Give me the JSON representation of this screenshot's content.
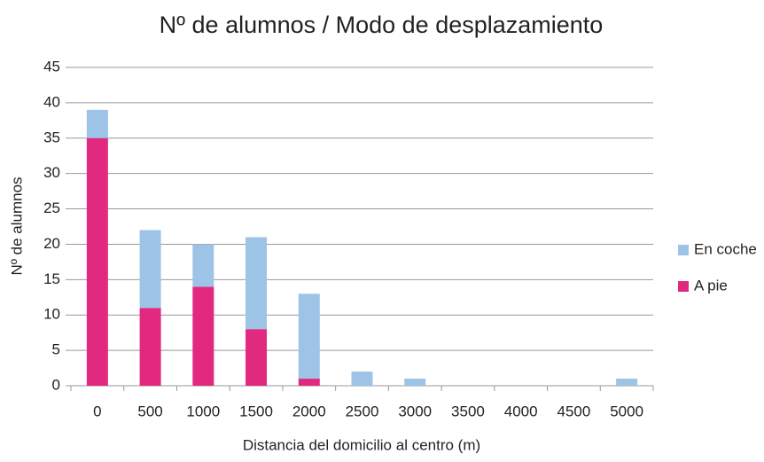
{
  "chart_data": {
    "type": "stacked_bar",
    "title": "Nº de alumnos / Modo de desplazamiento",
    "xlabel": "Distancia del domicilio al centro (m)",
    "ylabel": "Nº de alumnos",
    "categories": [
      "0",
      "500",
      "1000",
      "1500",
      "2000",
      "2500",
      "3000",
      "3500",
      "4000",
      "4500",
      "5000"
    ],
    "series": [
      {
        "name": "A pie",
        "color": "#e0297f",
        "values": [
          35,
          11,
          14,
          8,
          1,
          0,
          0,
          0,
          0,
          0,
          0
        ]
      },
      {
        "name": "En coche",
        "color": "#9dc3e6",
        "values": [
          4,
          11,
          6,
          13,
          12,
          2,
          1,
          0,
          0,
          0,
          1
        ]
      }
    ],
    "ylim": [
      0,
      45
    ],
    "yticks": [
      0,
      5,
      10,
      15,
      20,
      25,
      30,
      35,
      40,
      45
    ],
    "grid": true,
    "legend": "right"
  }
}
